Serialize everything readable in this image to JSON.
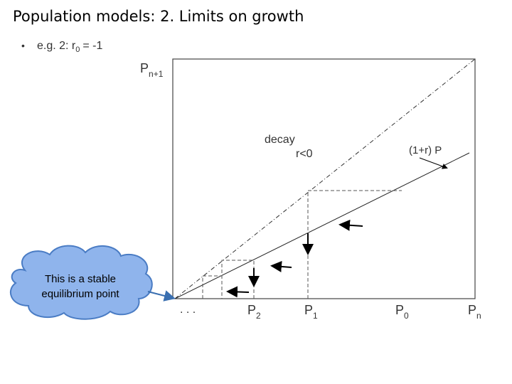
{
  "title": "Population models: 2. Limits on growth",
  "bullet": {
    "text": "e.g. 2: r",
    "sub": "0",
    "rest": "= -1"
  },
  "diagram": {
    "y_axis": {
      "label": "P",
      "sub": "n+1"
    },
    "x_axis": {
      "label": "P",
      "sub": "n"
    },
    "annotations": [
      "decay",
      "r<0",
      "(1+r) P"
    ],
    "ellipsis": ". . .",
    "points": [
      {
        "label": "P",
        "sub": "2"
      },
      {
        "label": "P",
        "sub": "1"
      },
      {
        "label": "P",
        "sub": "0"
      }
    ],
    "callout": [
      "This is a stable",
      "equilibrium point"
    ]
  }
}
